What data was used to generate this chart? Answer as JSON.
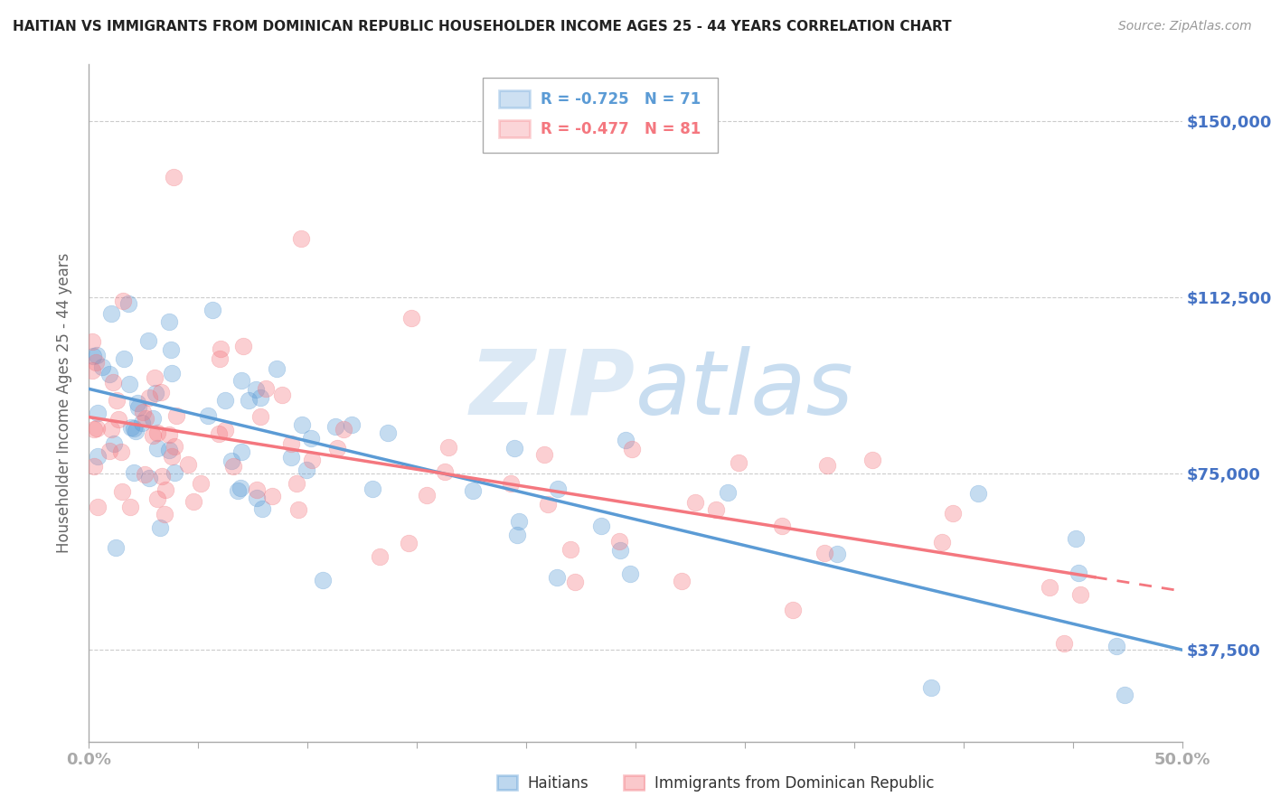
{
  "title": "HAITIAN VS IMMIGRANTS FROM DOMINICAN REPUBLIC HOUSEHOLDER INCOME AGES 25 - 44 YEARS CORRELATION CHART",
  "source": "Source: ZipAtlas.com",
  "ylabel": "Householder Income Ages 25 - 44 years",
  "xlim": [
    0.0,
    0.5
  ],
  "ylim": [
    18000,
    162000
  ],
  "yticks": [
    37500,
    75000,
    112500,
    150000
  ],
  "ytick_labels": [
    "$37,500",
    "$75,000",
    "$112,500",
    "$150,000"
  ],
  "xticks": [
    0.0,
    0.05,
    0.1,
    0.15,
    0.2,
    0.25,
    0.3,
    0.35,
    0.4,
    0.45,
    0.5
  ],
  "haitians_color": "#5b9bd5",
  "dr_color": "#f4777f",
  "haitians_label": "Haitians",
  "dr_label": "Immigrants from Dominican Republic",
  "background_color": "#ffffff",
  "grid_color": "#cccccc",
  "text_color": "#4472c4",
  "axis_label_color": "#666666",
  "watermark_color": "#dce9f5"
}
